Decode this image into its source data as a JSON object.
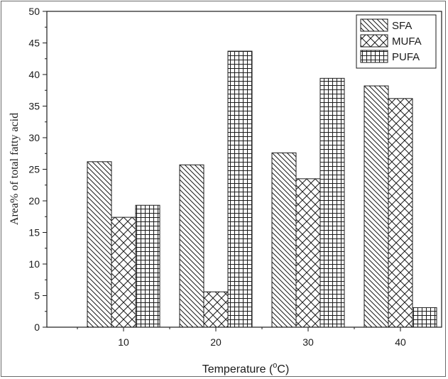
{
  "chart_data": {
    "type": "bar",
    "categories": [
      "10",
      "20",
      "30",
      "40"
    ],
    "series": [
      {
        "name": "SFA",
        "values": [
          26.2,
          25.7,
          27.6,
          38.2
        ],
        "pattern": "diagonal"
      },
      {
        "name": "MUFA",
        "values": [
          17.4,
          5.6,
          23.5,
          36.2
        ],
        "pattern": "crosshatch"
      },
      {
        "name": "PUFA",
        "values": [
          19.3,
          43.7,
          39.4,
          3.1
        ],
        "pattern": "grid"
      }
    ],
    "xlabel_main": "Temperature (",
    "xlabel_sup": "o",
    "xlabel_end": "C)",
    "ylabel": "Area% of total fatty acid",
    "ylim": [
      0,
      50
    ],
    "yticks": [
      "0",
      "5",
      "10",
      "15",
      "20",
      "25",
      "30",
      "35",
      "40",
      "45",
      "50"
    ],
    "legend_position": "top-right",
    "grid": false,
    "colors": {
      "stroke": "#1a1a1a",
      "fill": "#ffffff"
    }
  }
}
